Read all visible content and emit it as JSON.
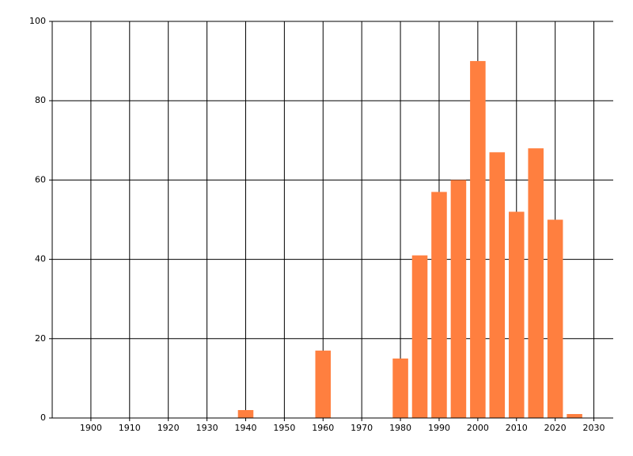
{
  "chart_data": {
    "type": "bar",
    "x": [
      1940,
      1960,
      1980,
      1985,
      1990,
      1995,
      2000,
      2005,
      2010,
      2015,
      2020,
      2025
    ],
    "values": [
      2,
      17,
      15,
      41,
      57,
      60,
      90,
      67,
      52,
      68,
      50,
      1
    ],
    "color": "#ff7f3f",
    "xlim": [
      1890,
      2035
    ],
    "xticks": [
      1900,
      1910,
      1920,
      1930,
      1940,
      1950,
      1960,
      1970,
      1980,
      1990,
      2000,
      2010,
      2020,
      2030
    ],
    "ylim": [
      0,
      100
    ],
    "yticks": [
      0,
      20,
      40,
      60,
      80,
      100
    ],
    "grid": true
  }
}
